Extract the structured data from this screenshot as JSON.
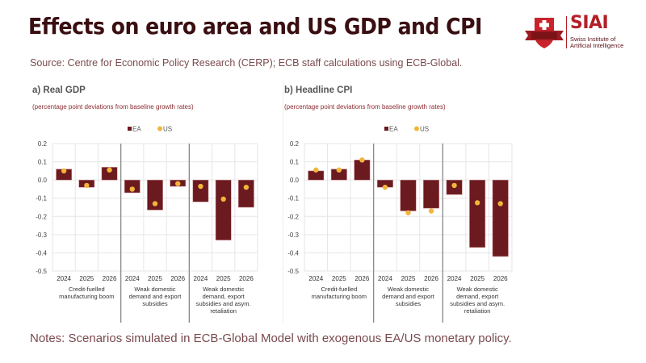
{
  "header": {
    "title": "Effects on euro area and US GDP and CPI",
    "source": "Source: Centre for Economic Policy Research (CERP); ECB staff calculations using ECB-Global."
  },
  "logo": {
    "brand": "SIAI",
    "line1": "Swiss Institute of",
    "line2": "Artificial Intelligence",
    "icon": "shield-cross-icon",
    "color": "#b22028"
  },
  "footer": {
    "notes": "Notes: Scenarios simulated in ECB-Global Model with exogenous EA/US monetary policy."
  },
  "colors": {
    "EA": "#6b1a1f",
    "US": "#f2b53a"
  },
  "chart_data": [
    {
      "type": "bar",
      "title": "a) Real GDP",
      "subtitle": "(percentage point deviations from baseline growth rates)",
      "legend": [
        "EA",
        "US"
      ],
      "legend_position": "top-center",
      "ylim": [
        -0.5,
        0.2
      ],
      "yticks": [
        "0.2",
        "0.1",
        "0.0",
        "-0.1",
        "-0.2",
        "-0.3",
        "-0.4",
        "-0.5"
      ],
      "grid": true,
      "groups": [
        {
          "label": [
            "Credit-fuelled",
            "manufacturing boom"
          ],
          "years": [
            "2024",
            "2025",
            "2026"
          ]
        },
        {
          "label": [
            "Weak domestic",
            "demand and export",
            "subsidies"
          ],
          "years": [
            "2024",
            "2025",
            "2026"
          ]
        },
        {
          "label": [
            "Weak domestic",
            "demand, export",
            "subsidies and asym.",
            "retaliation"
          ],
          "years": [
            "2024",
            "2025",
            "2026"
          ]
        }
      ],
      "series": [
        {
          "name": "EA",
          "kind": "bar",
          "values": [
            0.06,
            -0.04,
            0.07,
            -0.07,
            -0.165,
            -0.035,
            -0.12,
            -0.33,
            -0.15
          ]
        },
        {
          "name": "US",
          "kind": "dot",
          "values": [
            0.05,
            -0.03,
            0.055,
            -0.05,
            -0.13,
            -0.02,
            -0.035,
            -0.105,
            -0.04
          ]
        }
      ]
    },
    {
      "type": "bar",
      "title": "b) Headline CPI",
      "subtitle": "(percentage point deviations from baseline growth rates)",
      "legend": [
        "EA",
        "US"
      ],
      "legend_position": "top-center",
      "ylim": [
        -0.5,
        0.2
      ],
      "yticks": [
        "0.2",
        "0.1",
        "0.0",
        "-0.1",
        "-0.2",
        "-0.3",
        "-0.4",
        "-0.5"
      ],
      "grid": true,
      "groups": [
        {
          "label": [
            "Credit-fuelled",
            "manufacturing boom"
          ],
          "years": [
            "2024",
            "2025",
            "2026"
          ]
        },
        {
          "label": [
            "Weak domestic",
            "demand and export",
            "subsidies"
          ],
          "years": [
            "2024",
            "2025",
            "2026"
          ]
        },
        {
          "label": [
            "Weak domestic",
            "demand, export",
            "subsidies and asym.",
            "retaliation"
          ],
          "years": [
            "2024",
            "2025",
            "2026"
          ]
        }
      ],
      "series": [
        {
          "name": "EA",
          "kind": "bar",
          "values": [
            0.05,
            0.06,
            0.11,
            -0.04,
            -0.17,
            -0.155,
            -0.08,
            -0.37,
            -0.42
          ]
        },
        {
          "name": "US",
          "kind": "dot",
          "values": [
            0.055,
            0.055,
            0.11,
            -0.04,
            -0.18,
            -0.17,
            -0.03,
            -0.125,
            -0.13
          ]
        }
      ]
    }
  ]
}
